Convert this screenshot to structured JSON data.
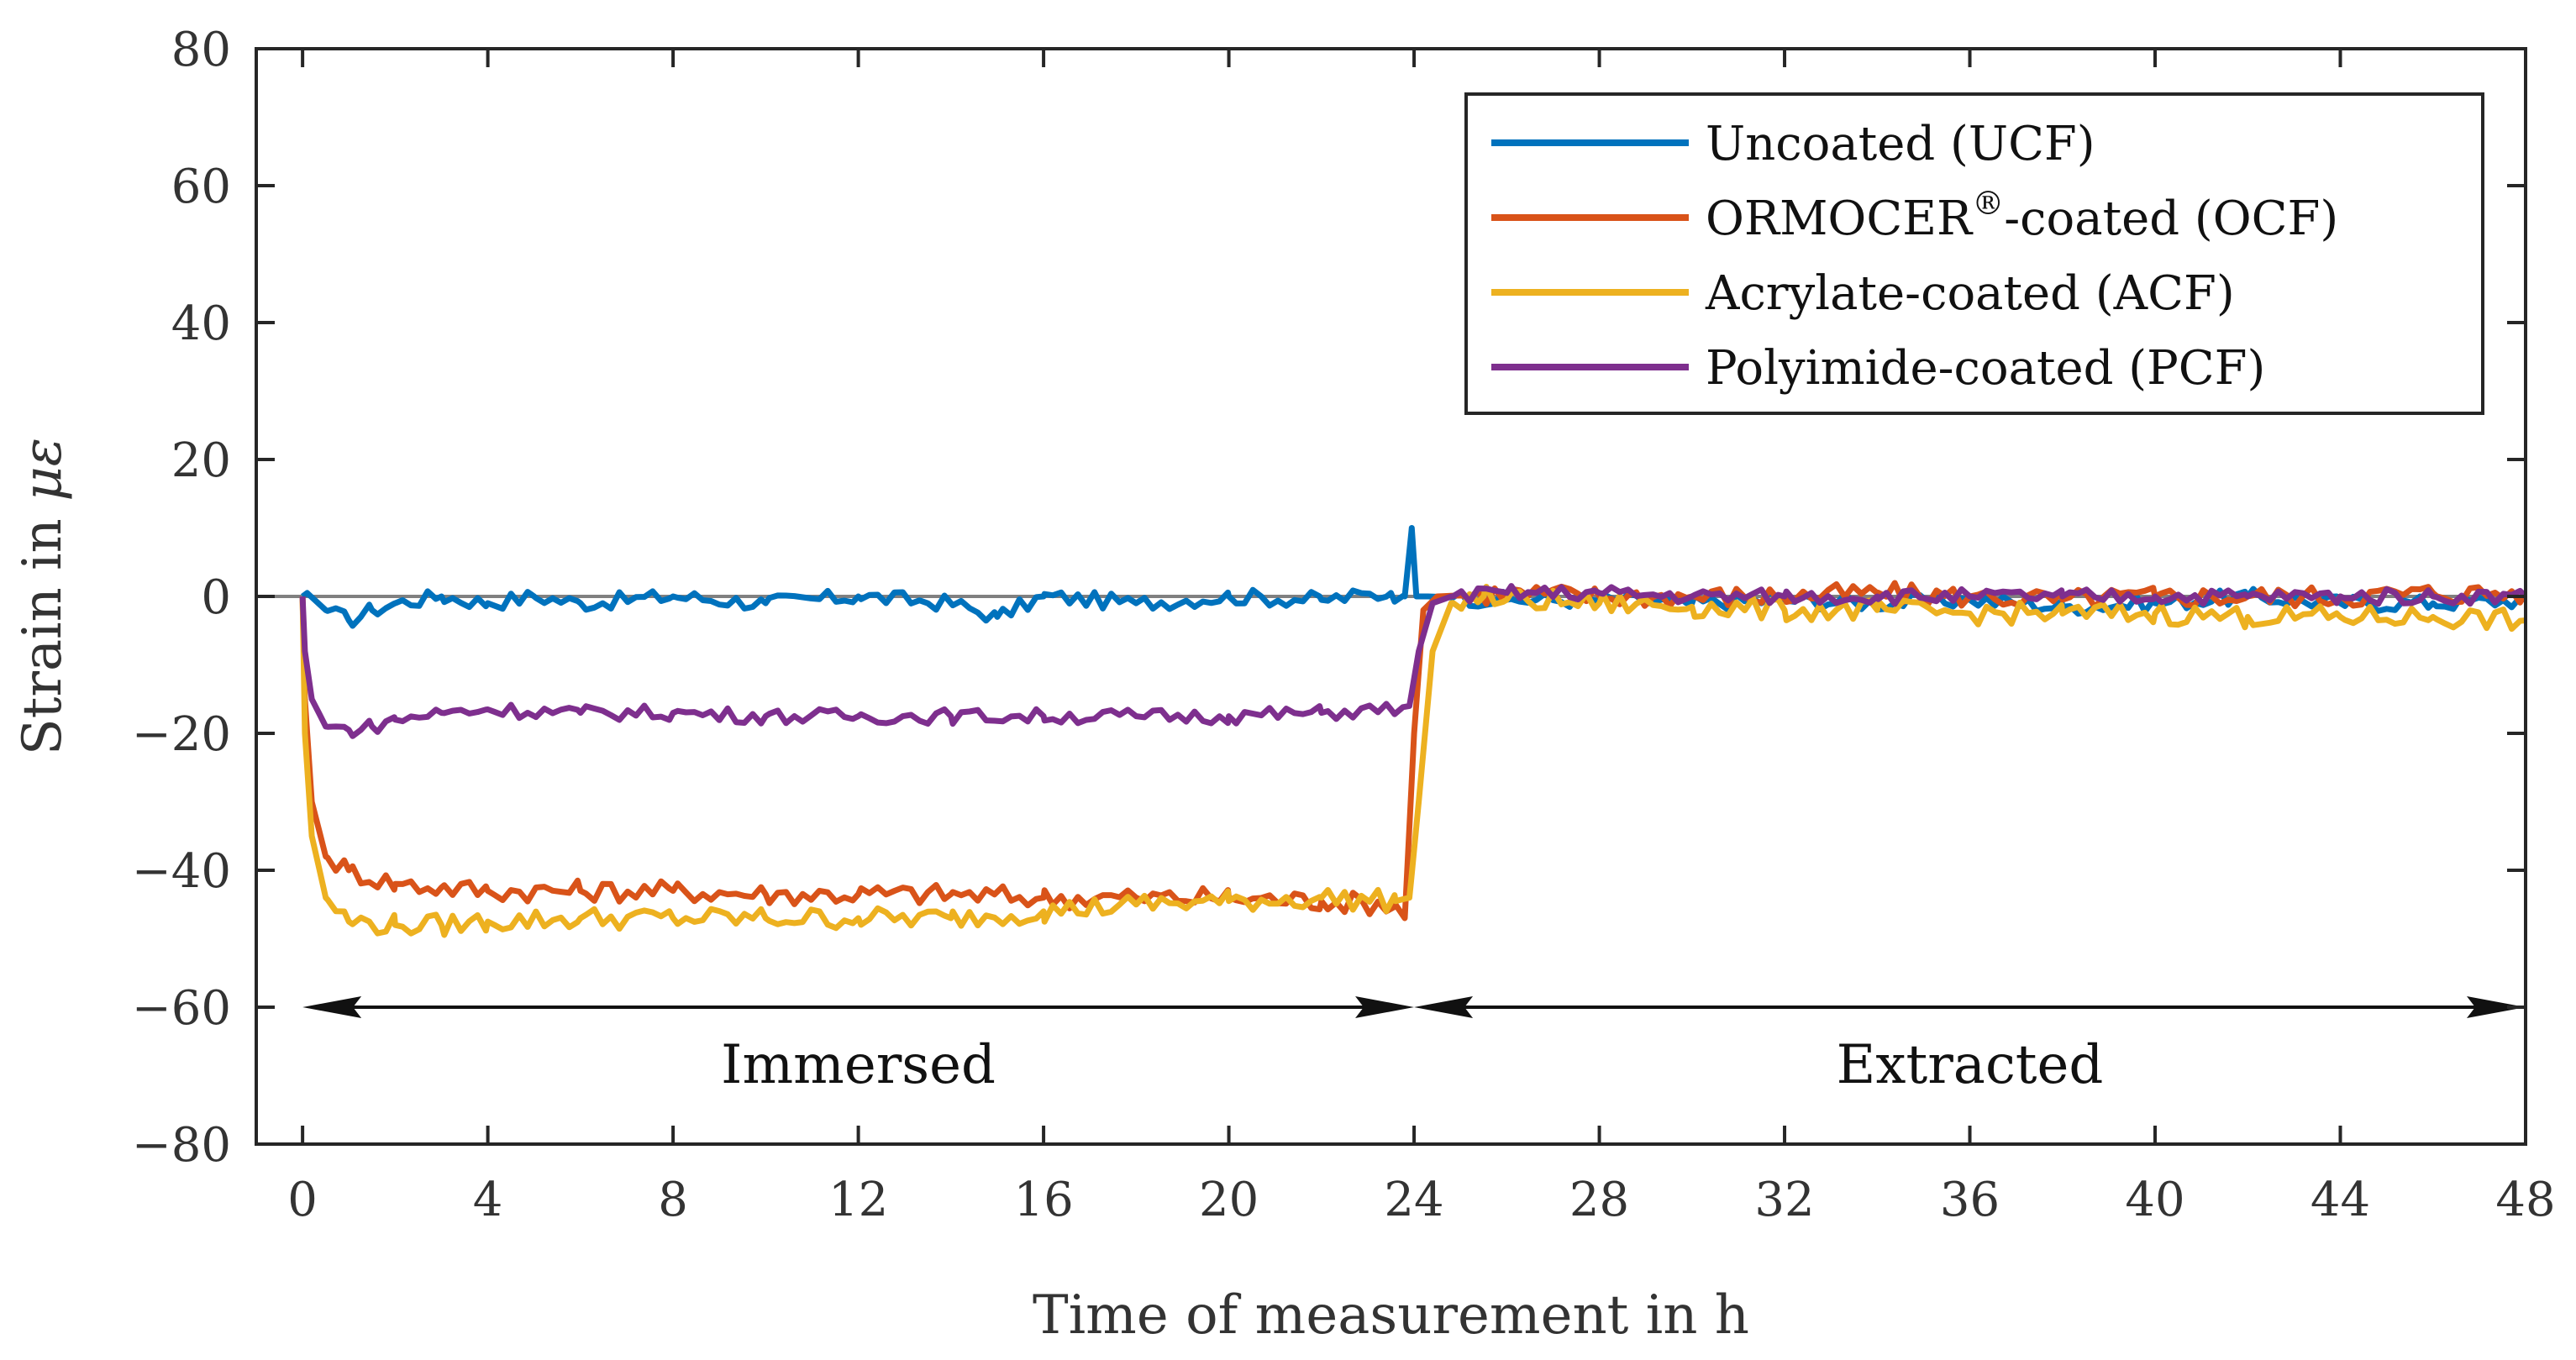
{
  "chart_data": {
    "type": "line",
    "title": "",
    "xlabel": "Time of measurement in h",
    "ylabel_prefix": "Strain in ",
    "ylabel_symbol": "με",
    "xlim": [
      -1,
      48
    ],
    "ylim": [
      -80,
      80
    ],
    "xticks": [
      0,
      4,
      8,
      12,
      16,
      20,
      24,
      28,
      32,
      36,
      40,
      44,
      48
    ],
    "yticks": [
      80,
      60,
      40,
      20,
      0,
      -20,
      -40,
      -60,
      -80
    ],
    "xtick_labels": [
      "0",
      "4",
      "8",
      "12",
      "16",
      "20",
      "24",
      "28",
      "32",
      "36",
      "40",
      "44",
      "48"
    ],
    "ytick_labels": [
      "80",
      "60",
      "40",
      "20",
      "0",
      "−20",
      "−40",
      "−60",
      "−80"
    ],
    "zero_line": 0,
    "legend_position": "top-right",
    "series": [
      {
        "name": "Uncoated (UCF)",
        "label_main": "Uncoated (UCF)",
        "color": "#0072BD",
        "points": [
          [
            0,
            0
          ],
          [
            0.1,
            0.5
          ],
          [
            0.5,
            -2
          ],
          [
            1,
            -3.5
          ],
          [
            1.5,
            -2
          ],
          [
            2,
            -1
          ],
          [
            3,
            0
          ],
          [
            4,
            -1
          ],
          [
            5,
            0
          ],
          [
            6,
            -1
          ],
          [
            8,
            0
          ],
          [
            10,
            -1
          ],
          [
            12,
            0
          ],
          [
            14,
            -1
          ],
          [
            15,
            -3
          ],
          [
            16,
            0
          ],
          [
            18,
            -1
          ],
          [
            20,
            0
          ],
          [
            22,
            -0.5
          ],
          [
            23.5,
            0.5
          ],
          [
            23.8,
            0
          ],
          [
            23.95,
            10
          ],
          [
            24.05,
            0
          ],
          [
            24.3,
            0
          ],
          [
            26,
            -0.5
          ],
          [
            28,
            -0.5
          ],
          [
            30,
            -1
          ],
          [
            32,
            -0.5
          ],
          [
            34,
            -1
          ],
          [
            36,
            -0.5
          ],
          [
            38,
            -1.5
          ],
          [
            40,
            -1
          ],
          [
            42,
            0
          ],
          [
            44,
            -1
          ],
          [
            46,
            -1
          ],
          [
            48,
            -0.5
          ]
        ]
      },
      {
        "name": "ORMOCER®-coated (OCF)",
        "label_main": "ORMOCER",
        "label_sup": "®",
        "label_rest": "-coated (OCF)",
        "color": "#D95319",
        "points": [
          [
            0,
            0
          ],
          [
            0.05,
            -15
          ],
          [
            0.2,
            -30
          ],
          [
            0.5,
            -38
          ],
          [
            1,
            -40
          ],
          [
            2,
            -42
          ],
          [
            3,
            -42.5
          ],
          [
            4,
            -43
          ],
          [
            6,
            -43
          ],
          [
            8,
            -43
          ],
          [
            10,
            -43.5
          ],
          [
            12,
            -43.5
          ],
          [
            14,
            -43.5
          ],
          [
            16,
            -44
          ],
          [
            18,
            -44
          ],
          [
            20,
            -44
          ],
          [
            22,
            -44.5
          ],
          [
            23.6,
            -45
          ],
          [
            23.8,
            -47
          ],
          [
            24,
            -20
          ],
          [
            24.2,
            -2
          ],
          [
            24.5,
            0
          ],
          [
            26,
            0.5
          ],
          [
            28,
            0
          ],
          [
            30,
            0
          ],
          [
            32,
            0
          ],
          [
            34,
            0.5
          ],
          [
            36,
            0
          ],
          [
            38,
            -0.5
          ],
          [
            40,
            0
          ],
          [
            42,
            0
          ],
          [
            44,
            0
          ],
          [
            46,
            0.5
          ],
          [
            48,
            0.5
          ]
        ]
      },
      {
        "name": "Acrylate-coated (ACF)",
        "label_main": "Acrylate-coated (ACF)",
        "color": "#EDB120",
        "points": [
          [
            0,
            0
          ],
          [
            0.05,
            -20
          ],
          [
            0.2,
            -35
          ],
          [
            0.5,
            -44
          ],
          [
            1,
            -47.5
          ],
          [
            2,
            -48
          ],
          [
            3,
            -48
          ],
          [
            4,
            -47.5
          ],
          [
            6,
            -47
          ],
          [
            8,
            -47
          ],
          [
            10,
            -47
          ],
          [
            12,
            -47
          ],
          [
            14,
            -47
          ],
          [
            16,
            -46
          ],
          [
            18,
            -45
          ],
          [
            20,
            -44.5
          ],
          [
            22,
            -44
          ],
          [
            23.6,
            -44.5
          ],
          [
            23.9,
            -44
          ],
          [
            24.1,
            -30
          ],
          [
            24.4,
            -8
          ],
          [
            24.8,
            -1
          ],
          [
            25.5,
            0
          ],
          [
            26,
            -0.5
          ],
          [
            28,
            -1
          ],
          [
            30,
            -1.5
          ],
          [
            32,
            -2
          ],
          [
            34,
            -2
          ],
          [
            36,
            -2.5
          ],
          [
            38,
            -2.5
          ],
          [
            40,
            -2.5
          ],
          [
            42,
            -3
          ],
          [
            44,
            -3
          ],
          [
            46,
            -3
          ],
          [
            48,
            -3.5
          ]
        ]
      },
      {
        "name": "Polyimide-coated (PCF)",
        "label_main": "Polyimide-coated (PCF)",
        "color": "#7E2F8E",
        "points": [
          [
            0,
            0
          ],
          [
            0.05,
            -8
          ],
          [
            0.2,
            -15
          ],
          [
            0.5,
            -19
          ],
          [
            1,
            -19.5
          ],
          [
            1.5,
            -19
          ],
          [
            2,
            -18
          ],
          [
            3,
            -17
          ],
          [
            4,
            -16.5
          ],
          [
            6,
            -17
          ],
          [
            8,
            -17
          ],
          [
            10,
            -17.5
          ],
          [
            12,
            -17.5
          ],
          [
            14,
            -17.5
          ],
          [
            16,
            -17.5
          ],
          [
            18,
            -17.5
          ],
          [
            20,
            -17.5
          ],
          [
            22,
            -17
          ],
          [
            23.5,
            -16.5
          ],
          [
            23.9,
            -16
          ],
          [
            24.1,
            -8
          ],
          [
            24.4,
            -1
          ],
          [
            24.8,
            0
          ],
          [
            26,
            0.5
          ],
          [
            28,
            0.5
          ],
          [
            30,
            0
          ],
          [
            32,
            0
          ],
          [
            34,
            0
          ],
          [
            36,
            0
          ],
          [
            38,
            0
          ],
          [
            40,
            0
          ],
          [
            42,
            0
          ],
          [
            44,
            0
          ],
          [
            46,
            0
          ],
          [
            48,
            0
          ]
        ]
      }
    ],
    "annotations": [
      {
        "text": "Immersed",
        "from_x": 0,
        "to_x": 24,
        "y": -60
      },
      {
        "text": "Extracted",
        "from_x": 24,
        "to_x": 48,
        "y": -60
      }
    ]
  }
}
